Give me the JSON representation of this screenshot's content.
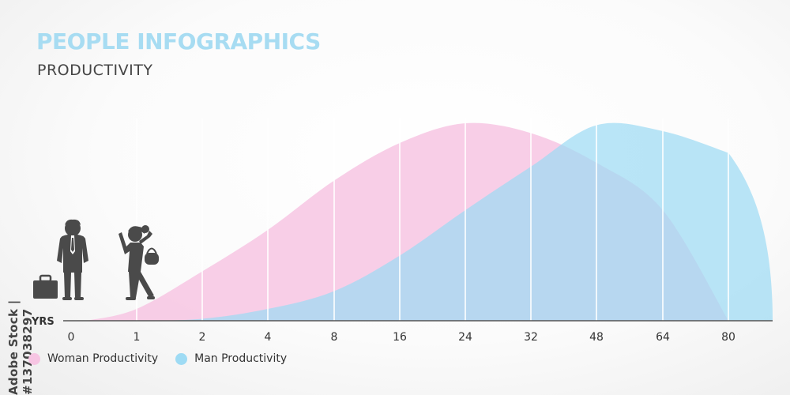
{
  "header": {
    "title": "PEOPLE INFOGRAPHICS",
    "subtitle": "PRODUCTIVITY"
  },
  "watermark": "Adobe Stock | #137038297",
  "colors": {
    "woman": "#f7c5e3",
    "man": "#9edbf4",
    "title": "#a7dcf2",
    "figures": "#4a4a4a"
  },
  "icons": [
    "briefcase-icon",
    "businessman-icon",
    "businesswoman-icon"
  ],
  "chart_data": {
    "type": "area",
    "title": "",
    "xlabel": "YRS",
    "ylabel": "",
    "x": [
      0,
      1,
      2,
      4,
      8,
      16,
      24,
      32,
      48,
      64,
      80
    ],
    "x_scale": "categorical",
    "ylim": [
      0,
      100
    ],
    "legend_position": "bottom-left",
    "series": [
      {
        "name": "Woman Productivity",
        "values": [
          0,
          6,
          25,
          46,
          71,
          90,
          100,
          95,
          80,
          56,
          0
        ]
      },
      {
        "name": "Man Productivity",
        "values": [
          0,
          0,
          1,
          6,
          15,
          33,
          56,
          78,
          99,
          96,
          85
        ]
      }
    ]
  },
  "legend": {
    "woman_label": "Woman Productivity",
    "man_label": "Man Productivity"
  }
}
